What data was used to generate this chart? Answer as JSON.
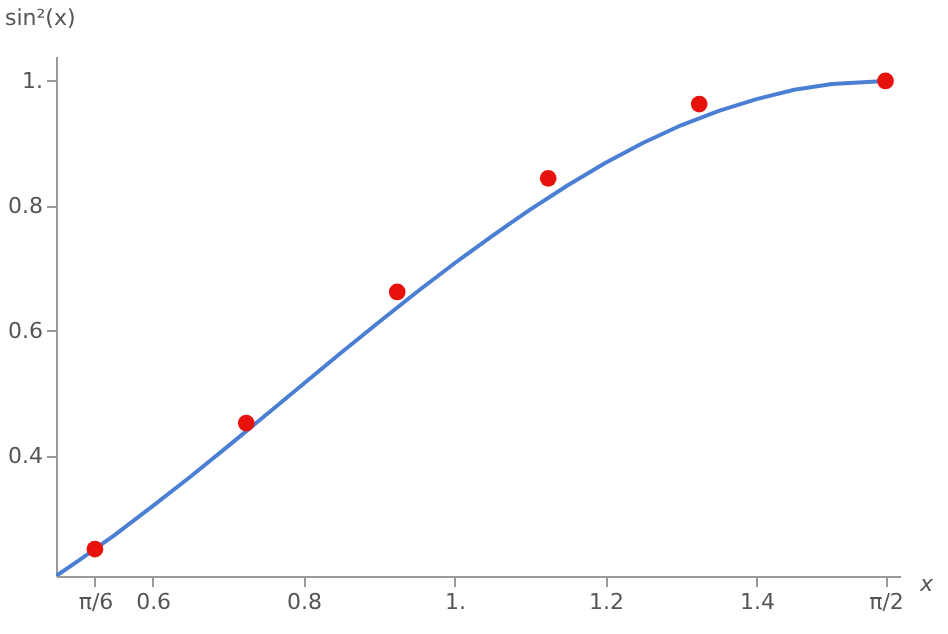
{
  "chart_data": {
    "type": "line",
    "xlabel": "x",
    "ylabel": "sin²(x)",
    "xlim": [
      0.472,
      1.59
    ],
    "ylim": [
      0.207,
      1.04
    ],
    "xticks": [
      {
        "value": 0.5236,
        "label": "π/6"
      },
      0.6,
      0.8,
      {
        "value": 1,
        "label": "1."
      },
      1.2,
      1.4,
      {
        "value": 1.5708,
        "label": "π/2"
      }
    ],
    "yticks": [
      0.4,
      0.6,
      0.8,
      {
        "value": 1,
        "label": "1."
      }
    ],
    "line_style": "solid",
    "series": [
      {
        "type": "line",
        "color": "#4a7fd4",
        "marker": "none",
        "x": [
          0.472,
          0.5,
          0.55,
          0.6,
          0.65,
          0.7,
          0.75,
          0.8,
          0.85,
          0.9,
          0.95,
          1.0,
          1.05,
          1.1,
          1.15,
          1.2,
          1.25,
          1.3,
          1.35,
          1.4,
          1.45,
          1.5,
          1.5708
        ],
        "values": [
          0.207,
          0.23,
          0.273,
          0.319,
          0.366,
          0.415,
          0.465,
          0.515,
          0.565,
          0.614,
          0.662,
          0.708,
          0.752,
          0.794,
          0.833,
          0.869,
          0.901,
          0.929,
          0.952,
          0.971,
          0.986,
          0.995,
          1.0
        ]
      },
      {
        "type": "scatter",
        "color": "#e8120c",
        "marker": "circle",
        "x": [
          0.5236,
          0.724,
          0.924,
          1.124,
          1.324,
          1.5708
        ],
        "values": [
          0.25,
          0.452,
          0.662,
          0.844,
          0.963,
          1.0
        ]
      }
    ]
  }
}
